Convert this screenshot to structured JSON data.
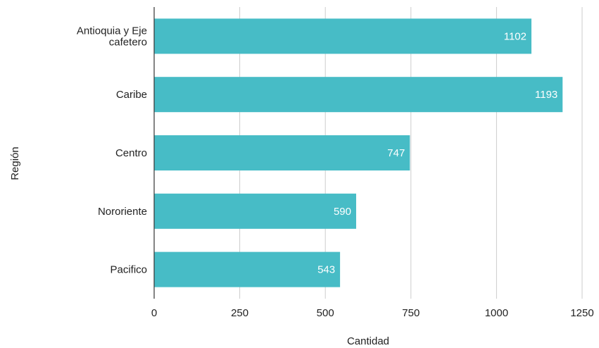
{
  "chart_data": {
    "type": "bar",
    "orientation": "horizontal",
    "categories": [
      [
        "Antioquia y Eje",
        "cafetero"
      ],
      [
        "Caribe"
      ],
      [
        "Centro"
      ],
      [
        "Nororiente"
      ],
      [
        "Pacifico"
      ]
    ],
    "values": [
      1102,
      1193,
      747,
      590,
      543
    ],
    "xlabel": "Cantidad",
    "ylabel": "Región",
    "xlim": [
      0,
      1250
    ],
    "xticks": [
      0,
      250,
      500,
      750,
      1000,
      1250
    ],
    "xtick_labels": [
      "0",
      "250",
      "500",
      "750",
      "1000",
      "1250"
    ],
    "bar_color": "#47bcc6",
    "grid": "vertical"
  }
}
